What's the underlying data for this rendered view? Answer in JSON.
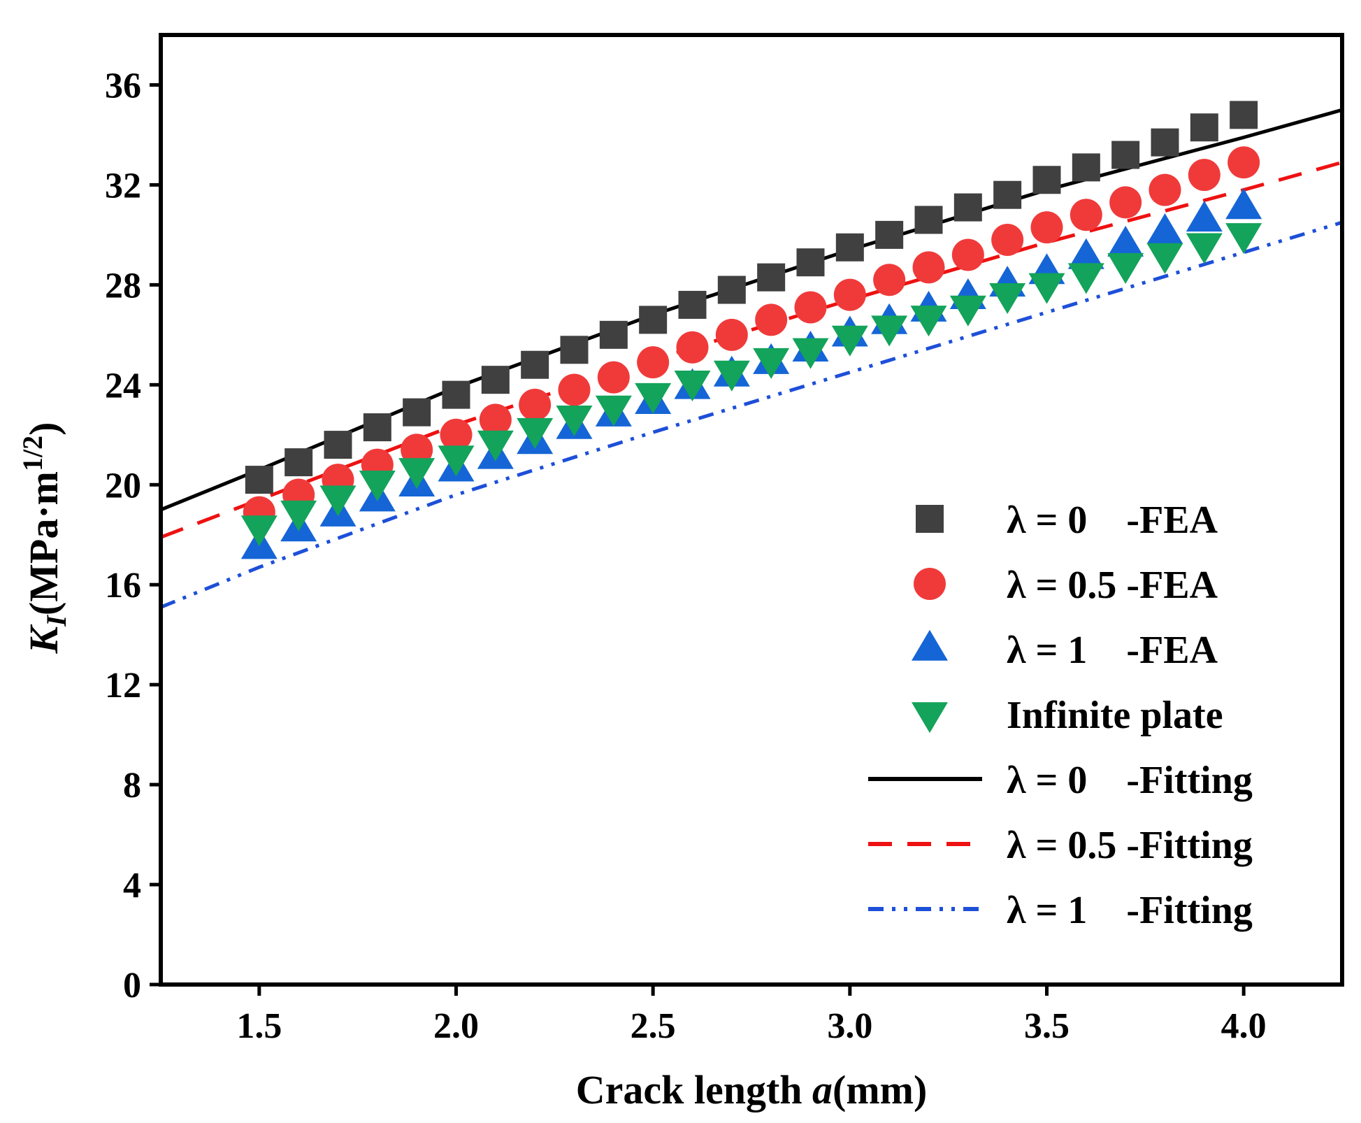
{
  "chart_data": {
    "type": "scatter",
    "xlabel": {
      "prefix": "Crack length ",
      "italic": "a",
      "suffix": "(mm)"
    },
    "ylabel": {
      "italic": "K",
      "sub": "I",
      "prefix": "(MPa·m",
      "sup": "1/2",
      "suffix": ")"
    },
    "xlim": [
      1.25,
      4.25
    ],
    "ylim": [
      0,
      38
    ],
    "xticks": [
      1.5,
      2.0,
      2.5,
      3.0,
      3.5,
      4.0
    ],
    "xtick_labels": [
      "1.5",
      "2.0",
      "2.5",
      "3.0",
      "3.5",
      "4.0"
    ],
    "yticks": [
      0,
      4,
      8,
      12,
      16,
      20,
      24,
      28,
      32,
      36
    ],
    "ytick_labels": [
      "0",
      "4",
      "8",
      "12",
      "16",
      "20",
      "24",
      "28",
      "32",
      "36"
    ],
    "legend_position": "bottom-right",
    "x": [
      1.5,
      1.6,
      1.7,
      1.8,
      1.9,
      2.0,
      2.1,
      2.2,
      2.3,
      2.4,
      2.5,
      2.6,
      2.7,
      2.8,
      2.9,
      3.0,
      3.1,
      3.2,
      3.3,
      3.4,
      3.5,
      3.6,
      3.7,
      3.8,
      3.9,
      4.0
    ],
    "series": [
      {
        "name": "λ = 0    -FEA",
        "kind": "markers",
        "marker": "square",
        "color": "#404040",
        "values": [
          20.2,
          20.9,
          21.6,
          22.3,
          22.9,
          23.6,
          24.2,
          24.8,
          25.4,
          26.0,
          26.6,
          27.2,
          27.8,
          28.3,
          28.9,
          29.5,
          30.0,
          30.6,
          31.1,
          31.6,
          32.2,
          32.7,
          33.2,
          33.7,
          34.3,
          34.8
        ]
      },
      {
        "name": "λ = 0.5 -FEA",
        "kind": "markers",
        "marker": "circle",
        "color": "#f03a3a",
        "values": [
          18.9,
          19.6,
          20.2,
          20.8,
          21.4,
          22.0,
          22.6,
          23.2,
          23.8,
          24.3,
          24.9,
          25.5,
          26.0,
          26.6,
          27.1,
          27.6,
          28.2,
          28.7,
          29.2,
          29.8,
          30.3,
          30.8,
          31.3,
          31.8,
          32.4,
          32.9
        ]
      },
      {
        "name": "λ = 1    -FEA",
        "kind": "markers",
        "marker": "triangle-up",
        "color": "#1565d6",
        "values": [
          17.5,
          18.2,
          18.8,
          19.4,
          20.0,
          20.6,
          21.1,
          21.7,
          22.3,
          22.8,
          23.3,
          23.9,
          24.4,
          24.9,
          25.4,
          26.0,
          26.5,
          27.0,
          27.5,
          28.0,
          28.5,
          29.1,
          29.6,
          30.1,
          30.6,
          31.1
        ]
      },
      {
        "name": "Infinite plate",
        "kind": "markers",
        "marker": "triangle-down",
        "color": "#13a35a",
        "values": [
          18.3,
          18.9,
          19.5,
          20.1,
          20.6,
          21.1,
          21.7,
          22.2,
          22.7,
          23.1,
          23.6,
          24.1,
          24.5,
          25.0,
          25.4,
          25.9,
          26.3,
          26.7,
          27.1,
          27.6,
          28.0,
          28.4,
          28.8,
          29.2,
          29.6,
          30.0
        ]
      },
      {
        "name": "λ = 0    -Fitting",
        "kind": "line",
        "dash": "solid",
        "color": "#000000",
        "line_x": [
          1.25,
          1.5,
          2.0,
          2.5,
          3.0,
          3.5,
          4.0,
          4.25
        ],
        "line_y": [
          19.0,
          20.6,
          23.9,
          26.8,
          29.4,
          31.8,
          33.9,
          35.0
        ]
      },
      {
        "name": "λ = 0.5 -Fitting",
        "kind": "line",
        "dash": "dashed",
        "color": "#ee1111",
        "line_x": [
          1.25,
          1.5,
          2.0,
          2.5,
          3.0,
          3.5,
          4.0,
          4.25
        ],
        "line_y": [
          17.9,
          19.4,
          22.4,
          25.0,
          27.4,
          29.7,
          31.8,
          32.9
        ]
      },
      {
        "name": "λ = 1    -Fitting",
        "kind": "line",
        "dash": "dash-dot-dot",
        "color": "#1d4fd8",
        "line_x": [
          1.25,
          1.5,
          2.0,
          2.5,
          3.0,
          3.5,
          4.0,
          4.25
        ],
        "line_y": [
          15.1,
          16.7,
          19.6,
          22.1,
          24.5,
          26.9,
          29.3,
          30.5
        ]
      }
    ]
  }
}
